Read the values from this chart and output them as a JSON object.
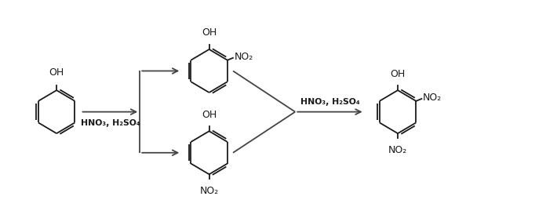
{
  "background_color": "#ffffff",
  "figure_width": 7.1,
  "figure_height": 2.78,
  "dpi": 100,
  "text_color": "#1a1a1a",
  "arrow_color": "#444444",
  "line_color": "#1a1a1a",
  "reagent1": "HNO₃, H₂SO₄",
  "reagent2": "HNO₃, H₂SO₄",
  "phenol_oh": "OH",
  "nitro2_oh": "OH",
  "nitro2_no2": "NO₂",
  "nitro4_oh": "OH",
  "nitro4_no2": "NO₂",
  "dinitro_oh": "OH",
  "dinitro_no2_ortho": "NO₂",
  "dinitro_no2_para": "NO₂",
  "xlim": [
    0,
    10
  ],
  "ylim": [
    0,
    3.8
  ]
}
